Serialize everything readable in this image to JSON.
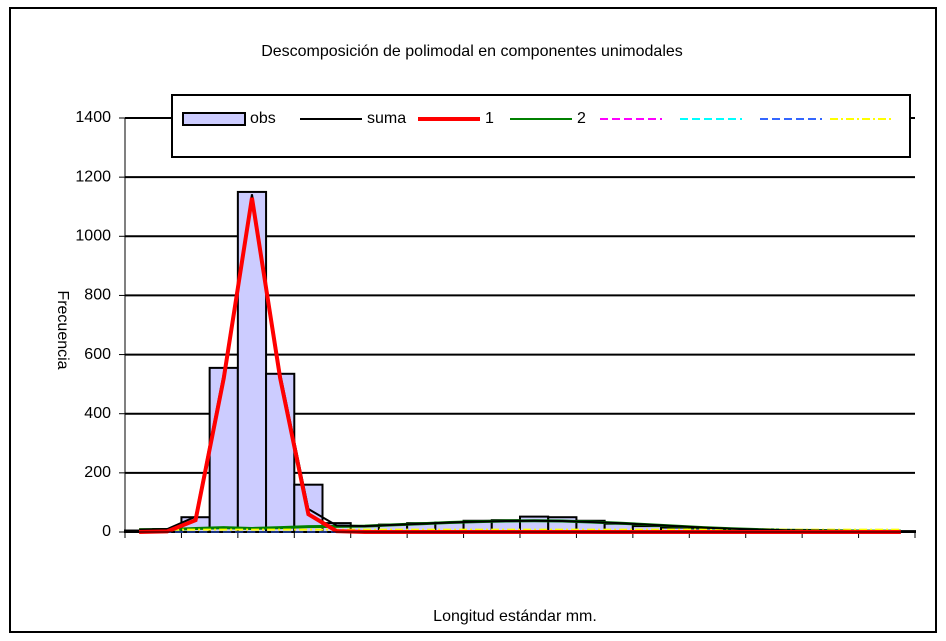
{
  "chart_data": {
    "type": "bar",
    "title": "Descomposición de polimodal en componentes unimodales",
    "x_label": "Longitud estándar mm.",
    "y_label": "Frecuencia",
    "categories": [
      null,
      null,
      null,
      null,
      null,
      null,
      null,
      null,
      null,
      null,
      null,
      null,
      null,
      null,
      null,
      null,
      null,
      null,
      null,
      null,
      null,
      null,
      null,
      null,
      null,
      null,
      null,
      null
    ],
    "ylim": [
      0,
      1400
    ],
    "yticks": [
      0,
      200,
      400,
      600,
      800,
      1000,
      1200,
      1400
    ],
    "grid": true,
    "series": [
      {
        "name": "obs",
        "kind": "bar",
        "color": "#ccccff",
        "values": [
          5,
          10,
          50,
          555,
          1150,
          535,
          160,
          30,
          20,
          25,
          30,
          32,
          38,
          40,
          52,
          50,
          38,
          28,
          20,
          15,
          12,
          10,
          8,
          6,
          5,
          4,
          3,
          3
        ]
      },
      {
        "name": "suma",
        "kind": "line",
        "color": "#000000",
        "values": [
          8,
          10,
          52,
          535,
          1142,
          535,
          78,
          22,
          20,
          24,
          28,
          32,
          35,
          37,
          38,
          37,
          34,
          30,
          25,
          20,
          15,
          11,
          8,
          6,
          5,
          4,
          3,
          3
        ]
      },
      {
        "name": "1",
        "kind": "line",
        "color": "#ff0000",
        "values": [
          0,
          2,
          40,
          520,
          1130,
          520,
          60,
          3,
          0,
          0,
          0,
          0,
          0,
          0,
          0,
          0,
          0,
          0,
          0,
          0,
          0,
          0,
          0,
          0,
          0,
          0,
          0,
          0
        ]
      },
      {
        "name": "2",
        "kind": "line",
        "color": "#008000",
        "values": [
          8,
          8,
          12,
          15,
          12,
          15,
          18,
          19,
          20,
          24,
          28,
          32,
          35,
          37,
          38,
          37,
          34,
          30,
          25,
          20,
          15,
          11,
          8,
          6,
          5,
          4,
          3,
          3
        ]
      },
      {
        "kind": "line",
        "color": "#ff00ff",
        "dash": "8 4",
        "values": [
          0,
          0,
          0,
          0,
          0,
          0,
          0,
          0,
          0,
          0,
          0,
          0,
          0,
          0,
          0,
          0,
          0,
          0,
          0,
          0,
          0,
          0,
          0,
          0,
          0,
          0,
          0,
          0
        ]
      },
      {
        "kind": "line",
        "color": "#00ffff",
        "dash": "8 4",
        "values": [
          0,
          0,
          0,
          0,
          0,
          0,
          0,
          0,
          0,
          0,
          0,
          0,
          0,
          0,
          0,
          0,
          0,
          0,
          0,
          0,
          0,
          0,
          0,
          0,
          0,
          0,
          0,
          0
        ]
      },
      {
        "kind": "line",
        "color": "#3366ff",
        "dash": "8 4",
        "values": [
          0,
          0,
          0,
          0,
          0,
          0,
          0,
          0,
          0,
          0,
          0,
          0,
          0,
          0,
          0,
          0,
          0,
          0,
          0,
          0,
          0,
          0,
          0,
          0,
          0,
          0,
          0,
          0
        ]
      },
      {
        "kind": "line",
        "color": "#ffff00",
        "dash": "8 3 2 3",
        "values": [
          8,
          8,
          8,
          8,
          8,
          8,
          8,
          8,
          8,
          8,
          8,
          8,
          8,
          8,
          8,
          8,
          8,
          8,
          8,
          8,
          8,
          8,
          8,
          8,
          8,
          8,
          8,
          8
        ]
      }
    ]
  }
}
